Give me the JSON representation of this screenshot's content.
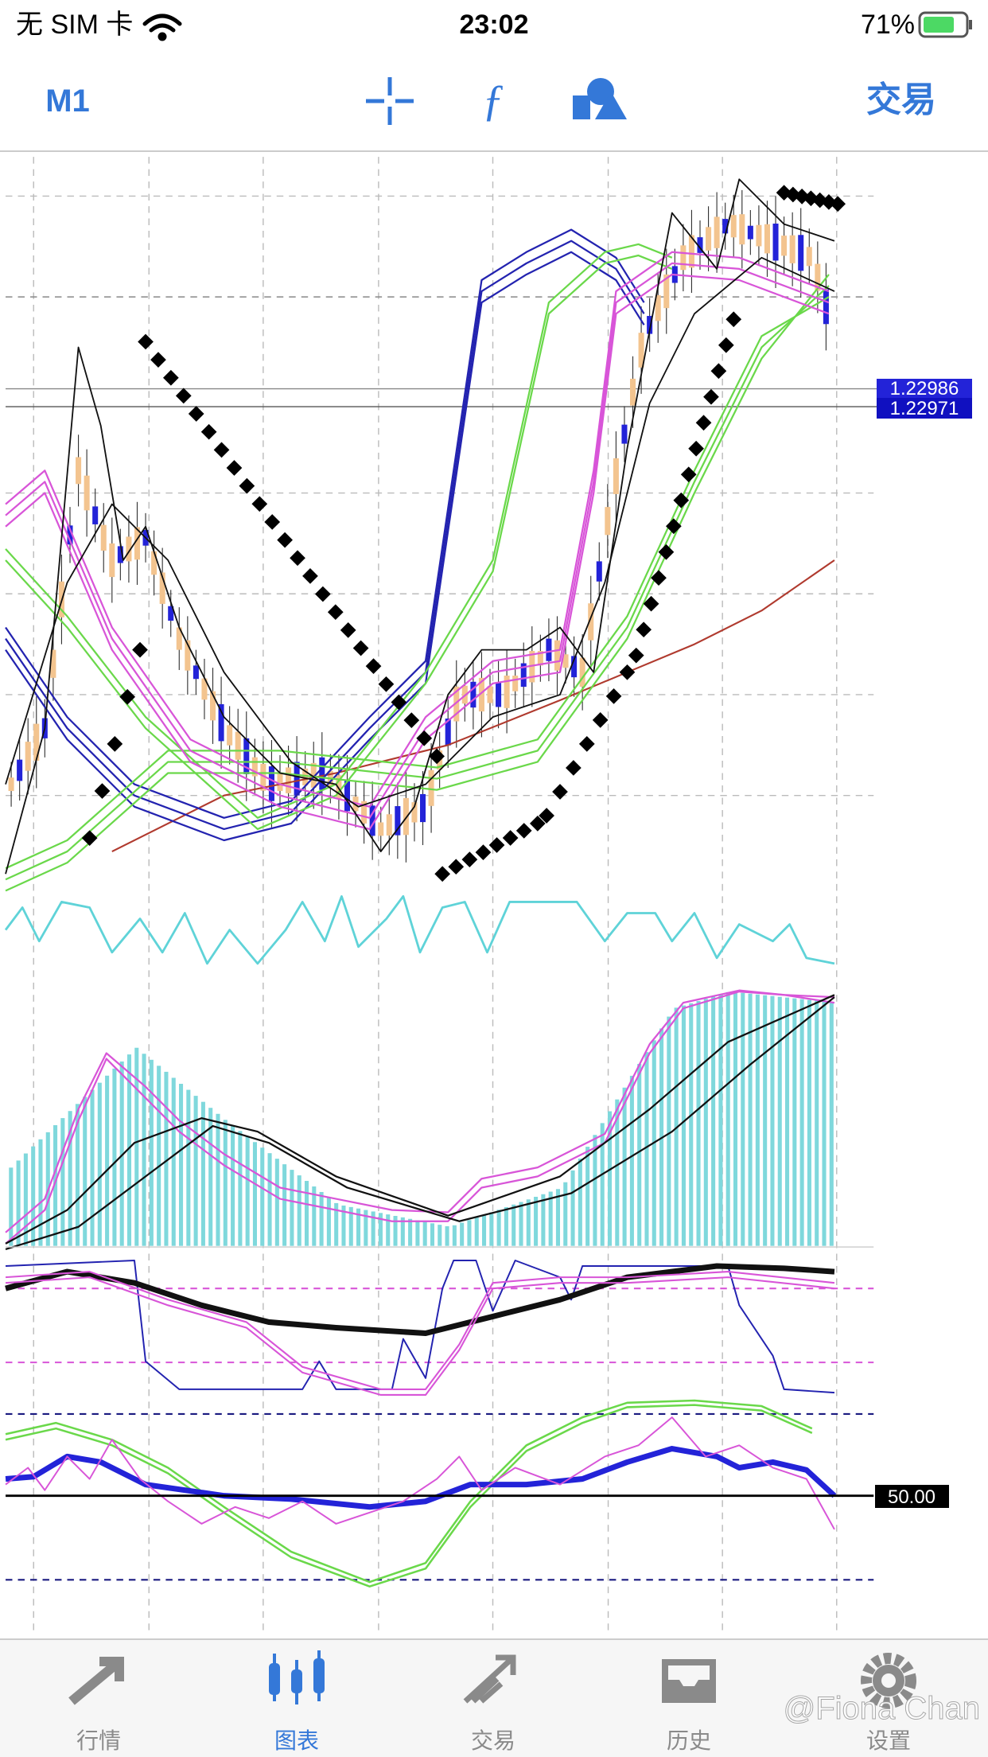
{
  "status_bar": {
    "carrier": "无 SIM 卡",
    "time": "23:02",
    "battery": "71%"
  },
  "toolbar": {
    "timeframe": "M1",
    "trade": "交易"
  },
  "price_labels": [
    "1.22986",
    "1.22971"
  ],
  "indicator_label": "50.00",
  "tabs": [
    "行情",
    "图表",
    "交易",
    "历史",
    "设置"
  ],
  "watermark": "@Fiona Chan"
}
